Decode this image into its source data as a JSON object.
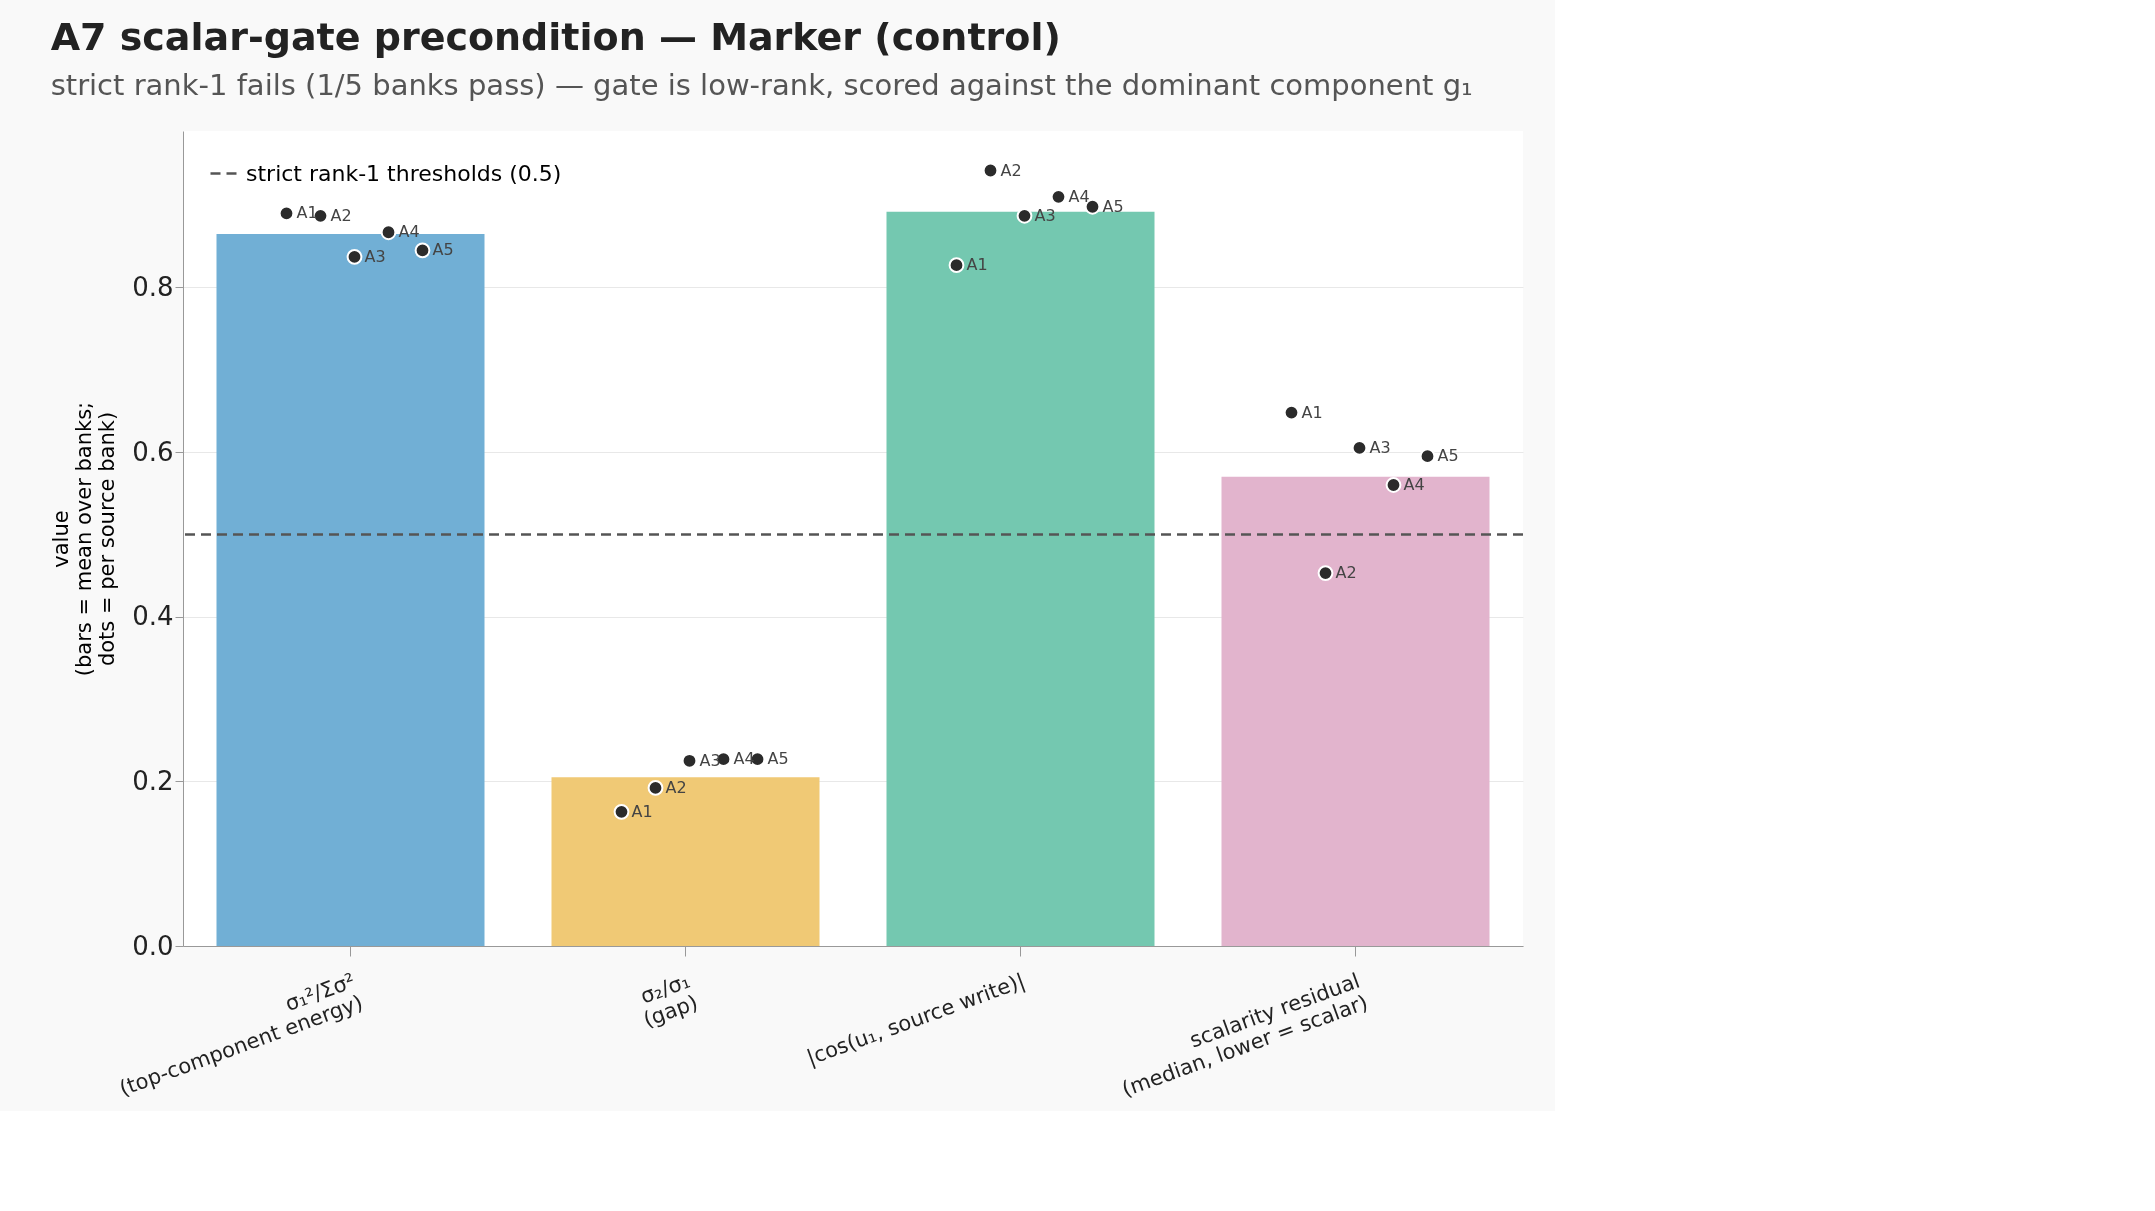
{
  "chart_data": {
    "type": "bar",
    "title": "A7 scalar-gate precondition — Marker (control)",
    "subtitle": "strict rank-1 fails (1/5 banks pass) — gate is low-rank, scored against the dominant component g₁",
    "ylabel": "value\n(bars = mean over banks;\ndots = per source bank)",
    "categories": [
      "σ₁²/Σσ²\n(top-component energy)",
      "σ₂/σ₁\n(gap)",
      "|cos(u₁, source write)|",
      "scalarity residual\n(median, lower = scalar)"
    ],
    "values": [
      0.865,
      0.205,
      0.892,
      0.57
    ],
    "colors": [
      "#71afd5",
      "#f0c975",
      "#74c8b0",
      "#e2b4cd"
    ],
    "series": [
      {
        "name": "A1",
        "type": "scatter",
        "color": "#2b2b2b",
        "values": [
          0.89,
          0.163,
          0.827,
          0.648
        ]
      },
      {
        "name": "A2",
        "type": "scatter",
        "color": "#2b2b2b",
        "values": [
          0.887,
          0.192,
          0.942,
          0.453
        ]
      },
      {
        "name": "A3",
        "type": "scatter",
        "color": "#2b2b2b",
        "values": [
          0.837,
          0.225,
          0.887,
          0.605
        ]
      },
      {
        "name": "A4",
        "type": "scatter",
        "color": "#2b2b2b",
        "values": [
          0.867,
          0.227,
          0.91,
          0.56
        ]
      },
      {
        "name": "A5",
        "type": "scatter",
        "color": "#2b2b2b",
        "values": [
          0.845,
          0.227,
          0.898,
          0.595
        ]
      }
    ],
    "ylim": [
      0,
      0.99
    ],
    "yticks": [
      {
        "value": 0,
        "label": "0.0"
      },
      0.2,
      0.4,
      0.6,
      0.8
    ],
    "ref_lines": [
      {
        "axis": "y",
        "value": 0.5,
        "label": "strict rank-1 thresholds (0.5)",
        "color": "#555555",
        "line_style": "dashed"
      }
    ],
    "grid": "y",
    "legend": "top left",
    "marker": "circle"
  }
}
